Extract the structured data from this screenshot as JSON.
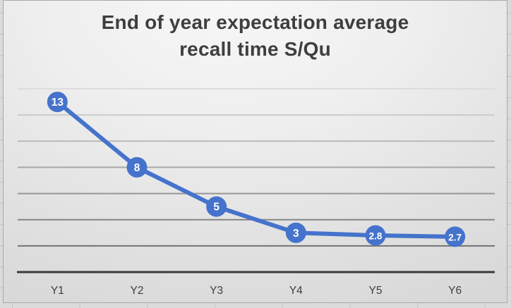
{
  "chart_data": {
    "type": "line",
    "title": "End of year expectation average recall time S/Qu",
    "title_lines": [
      "End of year expectation average",
      "recall time S/Qu"
    ],
    "categories": [
      "Y1",
      "Y2",
      "Y3",
      "Y4",
      "Y5",
      "Y6"
    ],
    "values": [
      13,
      8,
      5,
      3,
      2.8,
      2.7
    ],
    "point_labels": [
      "13",
      "8",
      "5",
      "3",
      "2.8",
      "2.7"
    ],
    "xlabel": "",
    "ylabel": "",
    "ylim": [
      0,
      14
    ],
    "gridline_values": [
      14,
      12,
      10,
      8,
      6,
      4,
      2
    ],
    "grid": true,
    "legend": "none",
    "y_tick_labels_visible": false,
    "colors": {
      "line": "#4573cc",
      "marker": "#4573cc",
      "marker_label": "#ffffff",
      "axis_line": "#3a3a3a",
      "axis_labels": "#3f3f3f",
      "title": "#3e3e3e"
    }
  }
}
